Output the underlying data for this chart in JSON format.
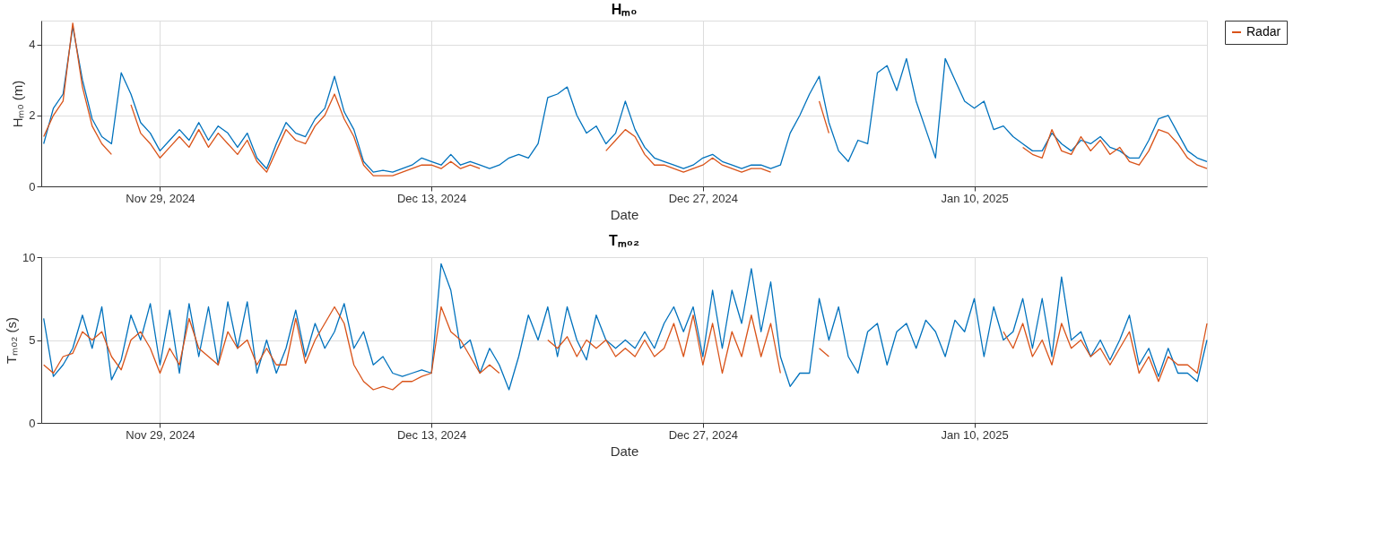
{
  "chart_data": [
    {
      "type": "line",
      "title": "Hₘ₀",
      "xlabel": "Date",
      "ylabel": "Hₘ₀ (m)",
      "x": [
        "2024-11-23T00:00",
        "2024-11-23T12:00",
        "2024-11-24T00:00",
        "2024-11-24T12:00",
        "2024-11-25T00:00",
        "2024-11-25T12:00",
        "2024-11-26T00:00",
        "2024-11-26T12:00",
        "2024-11-27T00:00",
        "2024-11-27T12:00",
        "2024-11-28T00:00",
        "2024-11-28T12:00",
        "2024-11-29T00:00",
        "2024-11-29T12:00",
        "2024-11-30T00:00",
        "2024-11-30T12:00",
        "2024-12-01T00:00",
        "2024-12-01T12:00",
        "2024-12-02T00:00",
        "2024-12-02T12:00",
        "2024-12-03T00:00",
        "2024-12-03T12:00",
        "2024-12-04T00:00",
        "2024-12-04T12:00",
        "2024-12-05T00:00",
        "2024-12-05T12:00",
        "2024-12-06T00:00",
        "2024-12-06T12:00",
        "2024-12-07T00:00",
        "2024-12-07T12:00",
        "2024-12-08T00:00",
        "2024-12-08T12:00",
        "2024-12-09T00:00",
        "2024-12-09T12:00",
        "2024-12-10T00:00",
        "2024-12-10T12:00",
        "2024-12-11T00:00",
        "2024-12-11T12:00",
        "2024-12-12T00:00",
        "2024-12-12T12:00",
        "2024-12-13T00:00",
        "2024-12-13T12:00",
        "2024-12-14T00:00",
        "2024-12-14T12:00",
        "2024-12-15T00:00",
        "2024-12-15T12:00",
        "2024-12-16T00:00",
        "2024-12-16T12:00",
        "2024-12-17T00:00",
        "2024-12-17T12:00",
        "2024-12-18T00:00",
        "2024-12-18T12:00",
        "2024-12-19T00:00",
        "2024-12-19T12:00",
        "2024-12-20T00:00",
        "2024-12-20T12:00",
        "2024-12-21T00:00",
        "2024-12-21T12:00",
        "2024-12-22T00:00",
        "2024-12-22T12:00",
        "2024-12-23T00:00",
        "2024-12-23T12:00",
        "2024-12-24T00:00",
        "2024-12-24T12:00",
        "2024-12-25T00:00",
        "2024-12-25T12:00",
        "2024-12-26T00:00",
        "2024-12-26T12:00",
        "2024-12-27T00:00",
        "2024-12-27T12:00",
        "2024-12-28T00:00",
        "2024-12-28T12:00",
        "2024-12-29T00:00",
        "2024-12-29T12:00",
        "2024-12-30T00:00",
        "2024-12-30T12:00",
        "2024-12-31T00:00",
        "2024-12-31T12:00",
        "2025-01-01T00:00",
        "2025-01-01T12:00",
        "2025-01-02T00:00",
        "2025-01-02T12:00",
        "2025-01-03T00:00",
        "2025-01-03T12:00",
        "2025-01-04T00:00",
        "2025-01-04T12:00",
        "2025-01-05T00:00",
        "2025-01-05T12:00",
        "2025-01-06T00:00",
        "2025-01-06T12:00",
        "2025-01-07T00:00",
        "2025-01-07T12:00",
        "2025-01-08T00:00",
        "2025-01-08T12:00",
        "2025-01-09T00:00",
        "2025-01-09T12:00",
        "2025-01-10T00:00",
        "2025-01-10T12:00",
        "2025-01-11T00:00",
        "2025-01-11T12:00",
        "2025-01-12T00:00",
        "2025-01-12T12:00",
        "2025-01-13T00:00",
        "2025-01-13T12:00",
        "2025-01-14T00:00",
        "2025-01-14T12:00",
        "2025-01-15T00:00",
        "2025-01-15T12:00",
        "2025-01-16T00:00",
        "2025-01-16T12:00",
        "2025-01-17T00:00",
        "2025-01-17T12:00",
        "2025-01-18T00:00",
        "2025-01-18T12:00",
        "2025-01-19T00:00",
        "2025-01-19T12:00",
        "2025-01-20T00:00",
        "2025-01-20T12:00",
        "2025-01-21T00:00",
        "2025-01-21T12:00",
        "2025-01-22T00:00"
      ],
      "xlim": [
        "2024-11-22T21:00",
        "2025-01-22T00:00"
      ],
      "xticks": [
        {
          "value": "2024-11-29",
          "label": "Nov 29, 2024"
        },
        {
          "value": "2024-12-13",
          "label": "Dec 13, 2024"
        },
        {
          "value": "2024-12-27",
          "label": "Dec 27, 2024"
        },
        {
          "value": "2025-01-10",
          "label": "Jan 10, 2025"
        }
      ],
      "ylim": [
        0,
        4.67
      ],
      "yticks": [
        0,
        2,
        4
      ],
      "grid": true,
      "legend": "right",
      "line_style": "solid",
      "series": [
        {
          "color": "#0072bd",
          "values": [
            1.2,
            2.2,
            2.6,
            4.5,
            3.0,
            1.9,
            1.4,
            1.2,
            3.2,
            2.6,
            1.8,
            1.5,
            1.0,
            1.3,
            1.6,
            1.3,
            1.8,
            1.3,
            1.7,
            1.5,
            1.1,
            1.5,
            0.8,
            0.5,
            1.2,
            1.8,
            1.5,
            1.4,
            1.9,
            2.2,
            3.1,
            2.1,
            1.6,
            0.7,
            0.4,
            0.45,
            0.4,
            0.5,
            0.6,
            0.8,
            0.7,
            0.6,
            0.9,
            0.6,
            0.7,
            0.6,
            0.5,
            0.6,
            0.8,
            0.9,
            0.8,
            1.2,
            2.5,
            2.6,
            2.8,
            2.0,
            1.5,
            1.7,
            1.2,
            1.5,
            2.4,
            1.6,
            1.1,
            0.8,
            0.7,
            0.6,
            0.5,
            0.6,
            0.8,
            0.9,
            0.7,
            0.6,
            0.5,
            0.6,
            0.6,
            0.5,
            0.6,
            1.5,
            2.0,
            2.6,
            3.1,
            1.8,
            1.0,
            0.7,
            1.3,
            1.2,
            3.2,
            3.4,
            2.7,
            3.6,
            2.4,
            1.6,
            0.8,
            3.6,
            3.0,
            2.4,
            2.2,
            2.4,
            1.6,
            1.7,
            1.4,
            1.2,
            1.0,
            1.0,
            1.5,
            1.2,
            1.0,
            1.3,
            1.2,
            1.4,
            1.1,
            1.0,
            0.8,
            0.8,
            1.3,
            1.9,
            2.0,
            1.5,
            1.0,
            0.8,
            0.7
          ]
        },
        {
          "name": "Radar",
          "color": "#d95319",
          "values": [
            1.4,
            2.0,
            2.4,
            4.6,
            2.8,
            1.7,
            1.2,
            0.9,
            null,
            2.3,
            1.5,
            1.2,
            0.8,
            1.1,
            1.4,
            1.1,
            1.6,
            1.1,
            1.5,
            1.2,
            0.9,
            1.3,
            0.7,
            0.4,
            1.0,
            1.6,
            1.3,
            1.2,
            1.7,
            2.0,
            2.6,
            1.9,
            1.4,
            0.6,
            0.3,
            0.3,
            0.3,
            0.4,
            0.5,
            0.6,
            0.6,
            0.5,
            0.7,
            0.5,
            0.6,
            0.5,
            null,
            null,
            null,
            null,
            null,
            null,
            null,
            null,
            null,
            null,
            null,
            null,
            1.0,
            1.3,
            1.6,
            1.4,
            0.9,
            0.6,
            0.6,
            0.5,
            0.4,
            0.5,
            0.6,
            0.8,
            0.6,
            0.5,
            0.4,
            0.5,
            0.5,
            0.4,
            null,
            null,
            null,
            null,
            2.4,
            1.5,
            null,
            null,
            null,
            null,
            null,
            null,
            null,
            null,
            null,
            null,
            null,
            null,
            null,
            null,
            null,
            null,
            null,
            null,
            null,
            1.1,
            0.9,
            0.8,
            1.6,
            1.0,
            0.9,
            1.4,
            1.0,
            1.3,
            0.9,
            1.1,
            0.7,
            0.6,
            1.0,
            1.6,
            1.5,
            1.2,
            0.8,
            0.6,
            0.5
          ]
        }
      ]
    },
    {
      "type": "line",
      "title": "Tₘ₀₂",
      "xlabel": "Date",
      "ylabel": "Tₘ₀₂ (s)",
      "x": [
        "2024-11-23T00:00",
        "2024-11-23T12:00",
        "2024-11-24T00:00",
        "2024-11-24T12:00",
        "2024-11-25T00:00",
        "2024-11-25T12:00",
        "2024-11-26T00:00",
        "2024-11-26T12:00",
        "2024-11-27T00:00",
        "2024-11-27T12:00",
        "2024-11-28T00:00",
        "2024-11-28T12:00",
        "2024-11-29T00:00",
        "2024-11-29T12:00",
        "2024-11-30T00:00",
        "2024-11-30T12:00",
        "2024-12-01T00:00",
        "2024-12-01T12:00",
        "2024-12-02T00:00",
        "2024-12-02T12:00",
        "2024-12-03T00:00",
        "2024-12-03T12:00",
        "2024-12-04T00:00",
        "2024-12-04T12:00",
        "2024-12-05T00:00",
        "2024-12-05T12:00",
        "2024-12-06T00:00",
        "2024-12-06T12:00",
        "2024-12-07T00:00",
        "2024-12-07T12:00",
        "2024-12-08T00:00",
        "2024-12-08T12:00",
        "2024-12-09T00:00",
        "2024-12-09T12:00",
        "2024-12-10T00:00",
        "2024-12-10T12:00",
        "2024-12-11T00:00",
        "2024-12-11T12:00",
        "2024-12-12T00:00",
        "2024-12-12T12:00",
        "2024-12-13T00:00",
        "2024-12-13T12:00",
        "2024-12-14T00:00",
        "2024-12-14T12:00",
        "2024-12-15T00:00",
        "2024-12-15T12:00",
        "2024-12-16T00:00",
        "2024-12-16T12:00",
        "2024-12-17T00:00",
        "2024-12-17T12:00",
        "2024-12-18T00:00",
        "2024-12-18T12:00",
        "2024-12-19T00:00",
        "2024-12-19T12:00",
        "2024-12-20T00:00",
        "2024-12-20T12:00",
        "2024-12-21T00:00",
        "2024-12-21T12:00",
        "2024-12-22T00:00",
        "2024-12-22T12:00",
        "2024-12-23T00:00",
        "2024-12-23T12:00",
        "2024-12-24T00:00",
        "2024-12-24T12:00",
        "2024-12-25T00:00",
        "2024-12-25T12:00",
        "2024-12-26T00:00",
        "2024-12-26T12:00",
        "2024-12-27T00:00",
        "2024-12-27T12:00",
        "2024-12-28T00:00",
        "2024-12-28T12:00",
        "2024-12-29T00:00",
        "2024-12-29T12:00",
        "2024-12-30T00:00",
        "2024-12-30T12:00",
        "2024-12-31T00:00",
        "2024-12-31T12:00",
        "2025-01-01T00:00",
        "2025-01-01T12:00",
        "2025-01-02T00:00",
        "2025-01-02T12:00",
        "2025-01-03T00:00",
        "2025-01-03T12:00",
        "2025-01-04T00:00",
        "2025-01-04T12:00",
        "2025-01-05T00:00",
        "2025-01-05T12:00",
        "2025-01-06T00:00",
        "2025-01-06T12:00",
        "2025-01-07T00:00",
        "2025-01-07T12:00",
        "2025-01-08T00:00",
        "2025-01-08T12:00",
        "2025-01-09T00:00",
        "2025-01-09T12:00",
        "2025-01-10T00:00",
        "2025-01-10T12:00",
        "2025-01-11T00:00",
        "2025-01-11T12:00",
        "2025-01-12T00:00",
        "2025-01-12T12:00",
        "2025-01-13T00:00",
        "2025-01-13T12:00",
        "2025-01-14T00:00",
        "2025-01-14T12:00",
        "2025-01-15T00:00",
        "2025-01-15T12:00",
        "2025-01-16T00:00",
        "2025-01-16T12:00",
        "2025-01-17T00:00",
        "2025-01-17T12:00",
        "2025-01-18T00:00",
        "2025-01-18T12:00",
        "2025-01-19T00:00",
        "2025-01-19T12:00",
        "2025-01-20T00:00",
        "2025-01-20T12:00",
        "2025-01-21T00:00",
        "2025-01-21T12:00",
        "2025-01-22T00:00"
      ],
      "xlim": [
        "2024-11-22T21:00",
        "2025-01-22T00:00"
      ],
      "xticks": [
        {
          "value": "2024-11-29",
          "label": "Nov 29, 2024"
        },
        {
          "value": "2024-12-13",
          "label": "Dec 13, 2024"
        },
        {
          "value": "2024-12-27",
          "label": "Dec 27, 2024"
        },
        {
          "value": "2025-01-10",
          "label": "Jan 10, 2025"
        }
      ],
      "ylim": [
        0,
        10
      ],
      "yticks": [
        0,
        5,
        10
      ],
      "grid": true,
      "legend": "right",
      "line_style": "solid",
      "series": [
        {
          "color": "#0072bd",
          "values": [
            6.3,
            2.8,
            3.5,
            4.5,
            6.5,
            4.5,
            7.0,
            2.6,
            3.8,
            6.5,
            5.0,
            7.2,
            3.5,
            6.8,
            3.0,
            7.2,
            4.0,
            7.0,
            3.5,
            7.3,
            4.5,
            7.3,
            3.0,
            5.0,
            3.0,
            4.5,
            6.8,
            4.0,
            6.0,
            4.5,
            5.5,
            7.2,
            4.5,
            5.5,
            3.5,
            4.0,
            3.0,
            2.8,
            3.0,
            3.2,
            3.0,
            9.6,
            8.0,
            4.5,
            5.0,
            3.0,
            4.5,
            3.5,
            2.0,
            4.0,
            6.5,
            5.0,
            7.0,
            4.0,
            7.0,
            5.0,
            3.8,
            6.5,
            5.0,
            4.5,
            5.0,
            4.5,
            5.5,
            4.5,
            6.0,
            7.0,
            5.5,
            7.0,
            4.0,
            8.0,
            4.5,
            8.0,
            6.0,
            9.3,
            5.5,
            8.5,
            4.0,
            2.2,
            3.0,
            3.0,
            7.5,
            5.0,
            7.0,
            4.0,
            3.0,
            5.5,
            6.0,
            3.5,
            5.5,
            6.0,
            4.5,
            6.2,
            5.5,
            4.0,
            6.2,
            5.5,
            7.5,
            4.0,
            7.0,
            5.0,
            5.5,
            7.5,
            4.5,
            7.5,
            4.0,
            8.8,
            5.0,
            5.5,
            4.0,
            5.0,
            3.8,
            5.0,
            6.5,
            3.5,
            4.5,
            2.8,
            4.5,
            3.0,
            3.0,
            2.5,
            5.0
          ]
        },
        {
          "name": "Radar",
          "color": "#d95319",
          "values": [
            3.5,
            3.0,
            4.0,
            4.2,
            5.5,
            5.0,
            5.5,
            4.0,
            3.2,
            5.0,
            5.5,
            4.5,
            3.0,
            4.5,
            3.5,
            6.3,
            4.5,
            4.0,
            3.5,
            5.5,
            4.5,
            5.0,
            3.5,
            4.5,
            3.5,
            3.5,
            6.3,
            3.6,
            5.0,
            6.0,
            7.0,
            6.0,
            3.5,
            2.5,
            2.0,
            2.2,
            2.0,
            2.5,
            2.5,
            2.8,
            3.0,
            7.0,
            5.5,
            5.0,
            4.0,
            3.0,
            3.5,
            3.0,
            null,
            null,
            null,
            null,
            5.0,
            4.5,
            5.2,
            4.0,
            5.0,
            4.5,
            5.0,
            4.0,
            4.5,
            4.0,
            5.0,
            4.0,
            4.5,
            6.0,
            4.0,
            6.5,
            3.5,
            6.0,
            3.0,
            5.5,
            4.0,
            6.5,
            4.0,
            6.0,
            3.0,
            null,
            null,
            null,
            4.5,
            4.0,
            null,
            null,
            null,
            null,
            null,
            null,
            null,
            null,
            null,
            null,
            null,
            null,
            null,
            null,
            null,
            null,
            null,
            5.5,
            4.5,
            6.0,
            4.0,
            5.0,
            3.5,
            6.0,
            4.5,
            5.0,
            4.0,
            4.5,
            3.5,
            4.5,
            5.5,
            3.0,
            4.0,
            2.5,
            4.0,
            3.5,
            3.5,
            3.0,
            6.0
          ]
        }
      ]
    }
  ]
}
